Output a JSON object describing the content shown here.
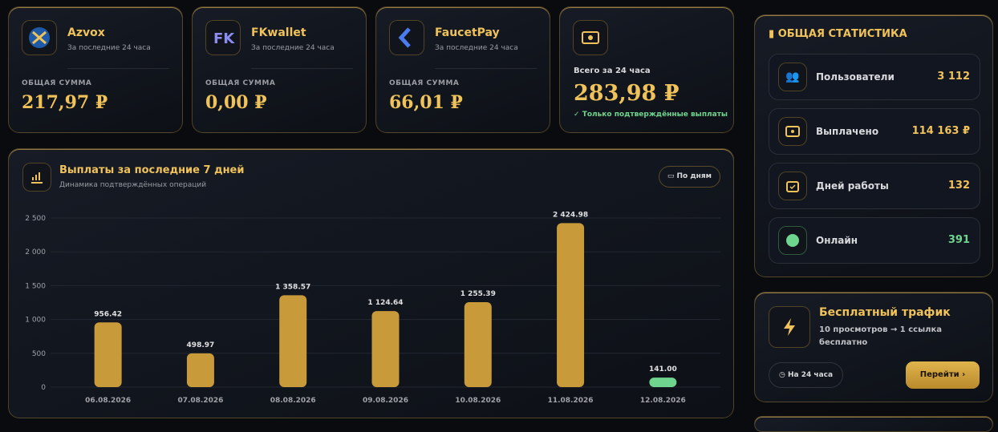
{
  "cards": [
    {
      "name": "Azvox",
      "period": "За последние 24 часа",
      "label": "ОБЩАЯ СУММА",
      "amount": "217,97 ₽"
    },
    {
      "name": "FKwallet",
      "period": "За последние 24 часа",
      "label": "ОБЩАЯ СУММА",
      "amount": "0,00 ₽"
    },
    {
      "name": "FaucetPay",
      "period": "За последние 24 часа",
      "label": "ОБЩАЯ СУММА",
      "amount": "66,01 ₽"
    }
  ],
  "total": {
    "label": "Всего за 24 часа",
    "amount": "283,98 ₽",
    "note": "Только подтверждённые выплаты"
  },
  "chart_panel": {
    "button": "По дням"
  },
  "chart_data": {
    "type": "bar",
    "title": "Выплаты за последние 7 дней",
    "subtitle": "Динамика подтверждённых операций",
    "categories": [
      "06.08.2026",
      "07.08.2026",
      "08.08.2026",
      "09.08.2026",
      "10.08.2026",
      "11.08.2026",
      "12.08.2026"
    ],
    "values": [
      956.42,
      498.97,
      1358.57,
      1124.64,
      1255.39,
      2424.98,
      141.0
    ],
    "value_labels": [
      "956.42",
      "498.97",
      "1 358.57",
      "1 124.64",
      "1 255.39",
      "2 424.98",
      "141.00"
    ],
    "colors": [
      "#c99a3a",
      "#c99a3a",
      "#c99a3a",
      "#c99a3a",
      "#c99a3a",
      "#c99a3a",
      "#6fd48e"
    ],
    "ylim": [
      0,
      2500
    ],
    "yticks": [
      0,
      500,
      {
        "value": 1000,
        "label": "1 000"
      },
      {
        "value": 1500,
        "label": "1 500"
      },
      {
        "value": 2000,
        "label": "2 000"
      },
      {
        "value": 2500,
        "label": "2 500"
      }
    ],
    "grid": true
  },
  "stats": {
    "title": "ОБЩАЯ СТАТИСТИКА",
    "items": [
      {
        "label": "Пользователи",
        "value": "3 112"
      },
      {
        "label": "Выплачено",
        "value": "114 163 ₽"
      },
      {
        "label": "Дней работы",
        "value": "132"
      },
      {
        "label": "Онлайн",
        "value": "391"
      }
    ]
  },
  "traffic": {
    "title": "Бесплатный трафик",
    "text": "10 просмотров → 1 ссылка бесплатно",
    "duration": "На 24 часа",
    "button": "Перейти"
  }
}
